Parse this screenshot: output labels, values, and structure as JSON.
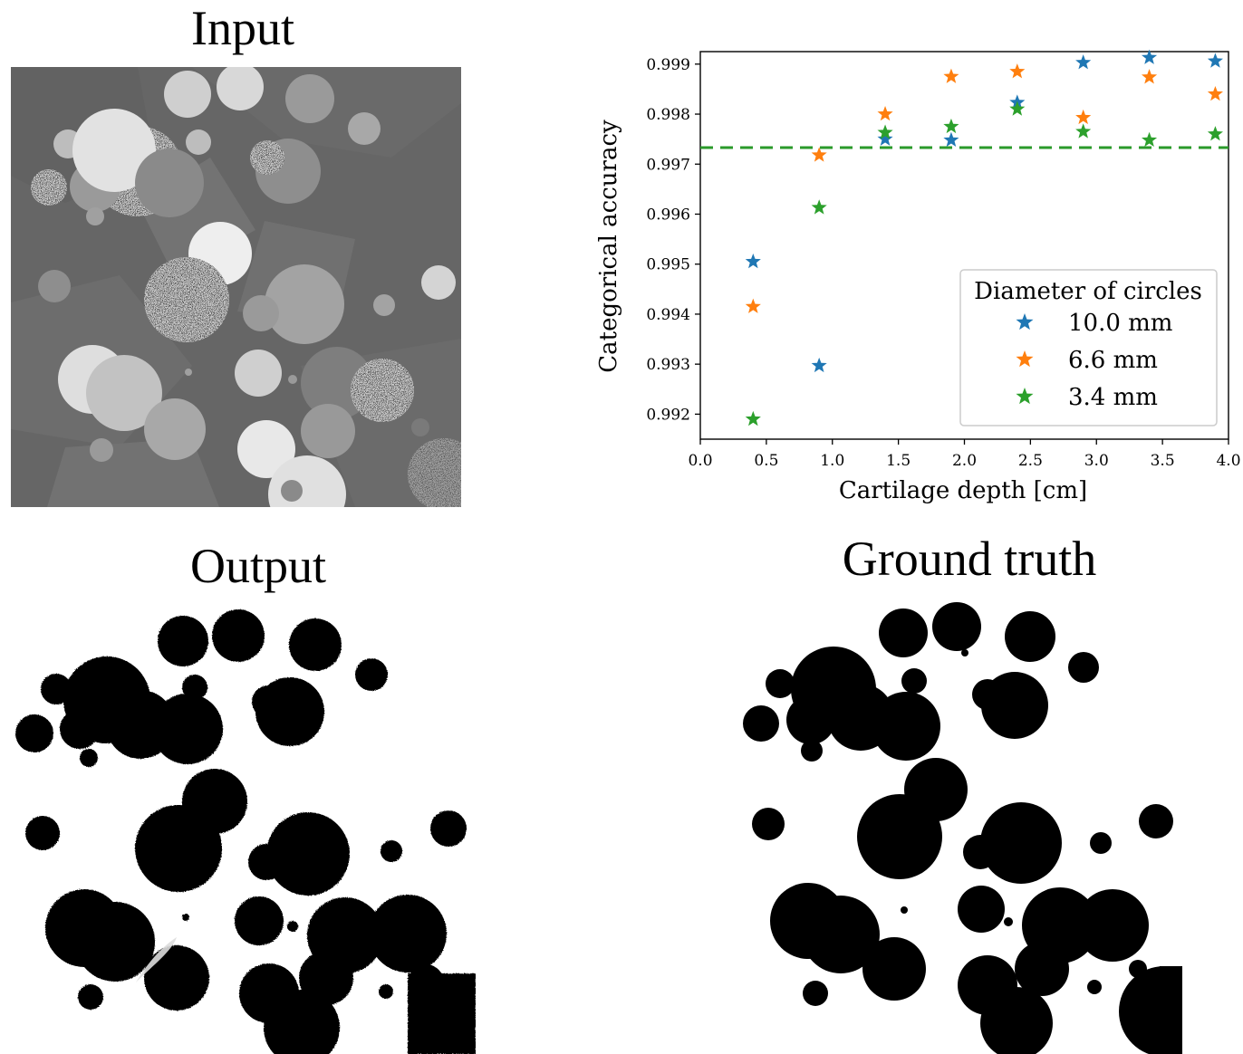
{
  "panels": {
    "input_title": "Input",
    "output_title": "Output",
    "ground_truth_title": "Ground truth"
  },
  "colors": {
    "blue": "#1f77b4",
    "orange": "#ff7f0e",
    "green": "#2ca02c",
    "baseline": "#2a9a2a"
  },
  "chart_data": {
    "type": "scatter",
    "title": "",
    "xlabel": "Cartilage depth [cm]",
    "ylabel": "Categorical accuracy",
    "xlim": [
      0.0,
      4.0
    ],
    "ylim": [
      0.9915,
      0.99925
    ],
    "xticks": [
      "0.0",
      "0.5",
      "1.0",
      "1.5",
      "2.0",
      "2.5",
      "3.0",
      "3.5",
      "4.0"
    ],
    "yticks": [
      "0.992",
      "0.993",
      "0.994",
      "0.995",
      "0.996",
      "0.997",
      "0.998",
      "0.999"
    ],
    "marker": "star",
    "grid": false,
    "legend_title": "Diameter of circles",
    "legend_position": "lower-right",
    "baseline": {
      "y": 0.99733,
      "style": "dashed",
      "color": "green"
    },
    "x": [
      0.4,
      0.9,
      1.4,
      1.9,
      2.4,
      2.9,
      3.4,
      3.9
    ],
    "series": [
      {
        "name": "10.0 mm",
        "color": "blue",
        "values": [
          0.99505,
          0.99297,
          0.9975,
          0.99748,
          0.99823,
          0.99903,
          0.99913,
          0.99906
        ]
      },
      {
        "name": "6.6 mm",
        "color": "orange",
        "values": [
          0.99415,
          0.99718,
          0.998,
          0.99875,
          0.99885,
          0.99793,
          0.99874,
          0.9984
        ]
      },
      {
        "name": "3.4 mm",
        "color": "green",
        "values": [
          0.9919,
          0.99613,
          0.99763,
          0.99775,
          0.9981,
          0.99765,
          0.99748,
          0.9976
        ]
      }
    ]
  }
}
